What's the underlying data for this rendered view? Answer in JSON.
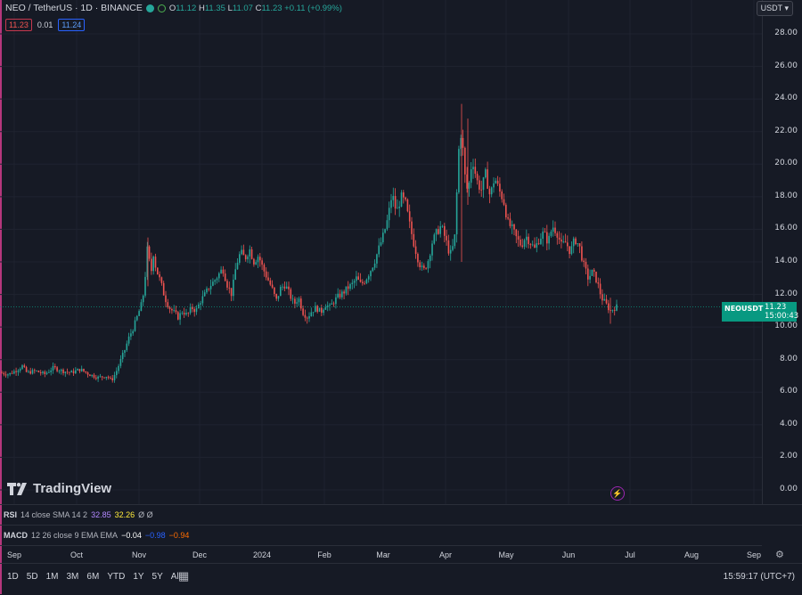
{
  "header": {
    "symbol_title": "NEO / TetherUS · 1D · BINANCE",
    "open_label": "O",
    "open": "11.12",
    "high_label": "H",
    "high": "11.35",
    "low_label": "L",
    "low": "11.07",
    "close_label": "C",
    "close": "11.23",
    "change": "+0.11 (+0.99%)",
    "sell_price": "11.23",
    "spread": "0.01",
    "buy_price": "11.24",
    "currency": "USDT"
  },
  "price_tag": {
    "symbol": "NEOUSDT",
    "price": "11.23",
    "countdown": "15:00:43"
  },
  "logo": {
    "text": "TradingView"
  },
  "indicators": {
    "rsi": {
      "name": "RSI",
      "params": "14 close SMA 14 2",
      "v1": "32.85",
      "v2": "32.26",
      "v3": "Ø Ø"
    },
    "macd": {
      "name": "MACD",
      "params": "12 26 close 9 EMA EMA",
      "v1": "−0.04",
      "v2": "−0.98",
      "v3": "−0.94"
    }
  },
  "toolbar": {
    "ranges": [
      "1D",
      "5D",
      "1M",
      "3M",
      "6M",
      "YTD",
      "1Y",
      "5Y",
      "All"
    ],
    "clock": "15:59:17 (UTC+7)"
  },
  "colors": {
    "up": "#26a69a",
    "down": "#ef5350",
    "background": "#161a25",
    "accent": "#089981"
  },
  "chart_data": {
    "type": "candlestick",
    "y_ticks": [
      "28.00",
      "26.00",
      "24.00",
      "22.00",
      "20.00",
      "18.00",
      "16.00",
      "14.00",
      "12.00",
      "10.00",
      "8.00",
      "6.00",
      "4.00",
      "2.00",
      "0.00"
    ],
    "ylim": [
      0,
      28
    ],
    "x_labels": [
      "Sep",
      "Oct",
      "Nov",
      "Dec",
      "2024",
      "Feb",
      "Mar",
      "Apr",
      "May",
      "Jun",
      "Jul",
      "Aug",
      "Sep"
    ],
    "last_price": 11.23,
    "close_path": [
      [
        0,
        7.2
      ],
      [
        10,
        7.1
      ],
      [
        20,
        7.4
      ],
      [
        25,
        7.6
      ],
      [
        30,
        7.2
      ],
      [
        40,
        7.3
      ],
      [
        50,
        7.1
      ],
      [
        60,
        7.5
      ],
      [
        70,
        7.3
      ],
      [
        80,
        7.2
      ],
      [
        90,
        7.4
      ],
      [
        100,
        7.1
      ],
      [
        110,
        6.9
      ],
      [
        120,
        7.0
      ],
      [
        125,
        6.7
      ],
      [
        130,
        7.2
      ],
      [
        135,
        7.9
      ],
      [
        140,
        8.6
      ],
      [
        145,
        9.4
      ],
      [
        150,
        10.0
      ],
      [
        155,
        10.8
      ],
      [
        160,
        11.6
      ],
      [
        163,
        13.2
      ],
      [
        166,
        15.2
      ],
      [
        169,
        13.0
      ],
      [
        172,
        14.6
      ],
      [
        175,
        13.6
      ],
      [
        180,
        12.8
      ],
      [
        185,
        11.8
      ],
      [
        190,
        11.2
      ],
      [
        195,
        10.9
      ],
      [
        200,
        10.6
      ],
      [
        205,
        11.0
      ],
      [
        210,
        10.7
      ],
      [
        215,
        11.2
      ],
      [
        220,
        11.0
      ],
      [
        225,
        11.6
      ],
      [
        230,
        12.0
      ],
      [
        235,
        12.5
      ],
      [
        240,
        12.8
      ],
      [
        245,
        13.2
      ],
      [
        250,
        13.6
      ],
      [
        255,
        12.6
      ],
      [
        260,
        12.0
      ],
      [
        265,
        13.8
      ],
      [
        270,
        14.6
      ],
      [
        275,
        14.2
      ],
      [
        280,
        14.8
      ],
      [
        285,
        14.0
      ],
      [
        290,
        14.4
      ],
      [
        295,
        13.6
      ],
      [
        300,
        13.0
      ],
      [
        305,
        12.4
      ],
      [
        310,
        11.6
      ],
      [
        315,
        12.4
      ],
      [
        320,
        12.6
      ],
      [
        325,
        12.0
      ],
      [
        330,
        11.4
      ],
      [
        335,
        11.8
      ],
      [
        340,
        10.9
      ],
      [
        345,
        10.6
      ],
      [
        350,
        11.0
      ],
      [
        355,
        11.2
      ],
      [
        360,
        10.9
      ],
      [
        365,
        11.4
      ],
      [
        370,
        11.2
      ],
      [
        375,
        11.6
      ],
      [
        380,
        11.9
      ],
      [
        385,
        12.1
      ],
      [
        390,
        12.4
      ],
      [
        395,
        12.6
      ],
      [
        400,
        13.0
      ],
      [
        405,
        12.6
      ],
      [
        410,
        12.9
      ],
      [
        415,
        13.4
      ],
      [
        420,
        14.0
      ],
      [
        425,
        14.8
      ],
      [
        430,
        15.6
      ],
      [
        435,
        16.6
      ],
      [
        440,
        18.2
      ],
      [
        445,
        17.0
      ],
      [
        450,
        18.0
      ],
      [
        455,
        17.6
      ],
      [
        460,
        16.2
      ],
      [
        465,
        15.0
      ],
      [
        470,
        14.0
      ],
      [
        475,
        13.4
      ],
      [
        480,
        14.0
      ],
      [
        485,
        15.2
      ],
      [
        490,
        15.8
      ],
      [
        495,
        16.2
      ],
      [
        500,
        15.4
      ],
      [
        505,
        14.4
      ],
      [
        510,
        15.2
      ],
      [
        515,
        21.0
      ],
      [
        518,
        22.2
      ],
      [
        521,
        19.5
      ],
      [
        525,
        18.2
      ],
      [
        530,
        20.4
      ],
      [
        535,
        19.0
      ],
      [
        540,
        18.4
      ],
      [
        545,
        19.4
      ],
      [
        550,
        18.0
      ],
      [
        555,
        19.2
      ],
      [
        560,
        18.4
      ],
      [
        565,
        17.8
      ],
      [
        570,
        16.4
      ],
      [
        575,
        16.0
      ],
      [
        580,
        15.4
      ],
      [
        585,
        15.0
      ],
      [
        590,
        15.6
      ],
      [
        595,
        15.2
      ],
      [
        600,
        14.8
      ],
      [
        605,
        15.4
      ],
      [
        610,
        15.8
      ],
      [
        615,
        15.2
      ],
      [
        620,
        16.2
      ],
      [
        625,
        15.8
      ],
      [
        630,
        15.0
      ],
      [
        635,
        15.2
      ],
      [
        640,
        14.6
      ],
      [
        645,
        15.4
      ],
      [
        650,
        15.0
      ],
      [
        655,
        13.8
      ],
      [
        660,
        13.0
      ],
      [
        665,
        13.4
      ],
      [
        670,
        12.8
      ],
      [
        675,
        11.8
      ],
      [
        680,
        11.4
      ],
      [
        685,
        11.0
      ],
      [
        690,
        11.2
      ],
      [
        692,
        11.23
      ]
    ]
  }
}
